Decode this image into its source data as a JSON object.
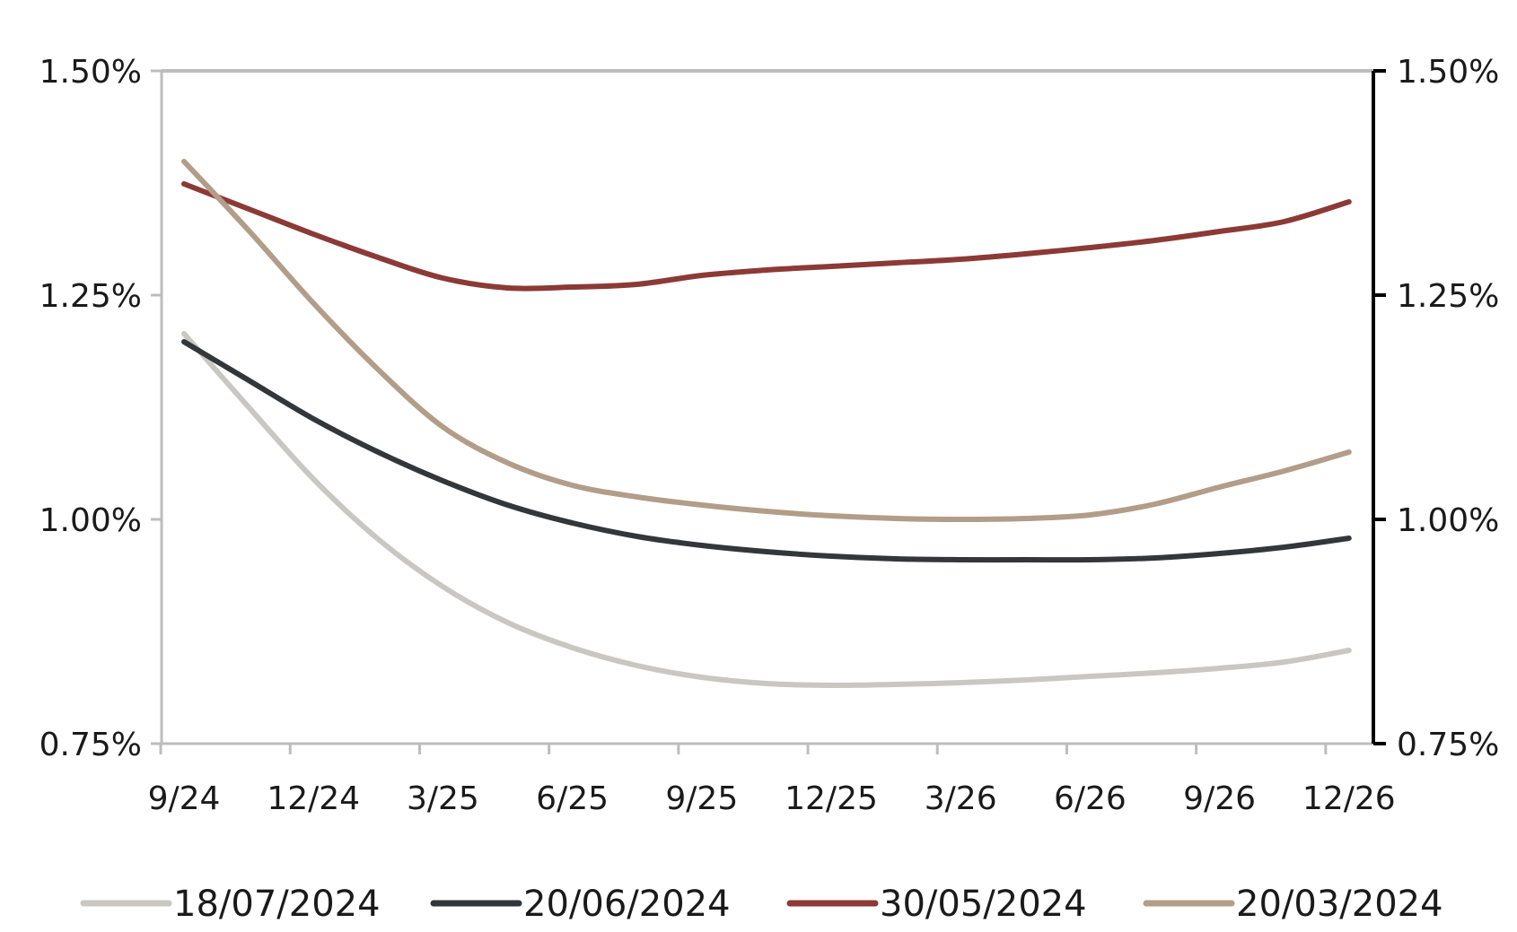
{
  "chart_data": {
    "type": "line",
    "title": "",
    "xlabel": "",
    "ylabel": "",
    "x_tick_labels": [
      "9/24",
      "12/24",
      "3/25",
      "6/25",
      "9/25",
      "12/25",
      "3/26",
      "6/26",
      "9/26",
      "12/26"
    ],
    "y_ticks": [
      0.75,
      1.0,
      1.25,
      1.5
    ],
    "y_tick_labels": [
      "0.75%",
      "1.00%",
      "1.25%",
      "1.50%"
    ],
    "ylim": [
      0.75,
      1.5
    ],
    "y2_tick_labels": [
      "0.75%",
      "1.00%",
      "1.25%",
      "1.50%"
    ],
    "grid": false,
    "legend_position": "bottom",
    "x_months": [
      0,
      3,
      6,
      9,
      12,
      15,
      18,
      21,
      24,
      27
    ],
    "series": [
      {
        "name": "18/07/2024",
        "color": "#c9c7c2",
        "x": [
          0,
          1.5,
          3,
          4.5,
          6,
          7.5,
          9,
          10.5,
          12,
          13.5,
          15,
          16.5,
          18,
          19.5,
          21,
          22.5,
          24,
          25.5,
          27
        ],
        "values": [
          1.207,
          1.125,
          1.045,
          0.978,
          0.925,
          0.885,
          0.857,
          0.837,
          0.824,
          0.817,
          0.815,
          0.816,
          0.818,
          0.821,
          0.825,
          0.829,
          0.834,
          0.841,
          0.854
        ]
      },
      {
        "name": "20/06/2024",
        "color": "#33373a",
        "x": [
          0,
          1.5,
          3,
          4.5,
          6,
          7.5,
          9,
          10.5,
          12,
          13.5,
          15,
          16.5,
          18,
          19.5,
          21,
          22.5,
          24,
          25.5,
          27
        ],
        "values": [
          1.198,
          1.155,
          1.112,
          1.075,
          1.043,
          1.016,
          0.996,
          0.981,
          0.971,
          0.964,
          0.959,
          0.956,
          0.955,
          0.955,
          0.955,
          0.957,
          0.962,
          0.969,
          0.979
        ]
      },
      {
        "name": "30/05/2024",
        "color": "#8b3a36",
        "x": [
          0,
          1.5,
          3,
          4.5,
          6,
          7.5,
          9,
          10.5,
          12,
          13.5,
          15,
          16.5,
          18,
          19.5,
          21,
          22.5,
          24,
          25.5,
          27
        ],
        "values": [
          1.374,
          1.346,
          1.318,
          1.292,
          1.269,
          1.258,
          1.259,
          1.262,
          1.272,
          1.278,
          1.282,
          1.286,
          1.29,
          1.296,
          1.303,
          1.311,
          1.321,
          1.332,
          1.354
        ]
      },
      {
        "name": "20/03/2024",
        "color": "#b29d89",
        "x": [
          0,
          1.5,
          3,
          4.5,
          6,
          7.5,
          9,
          10.5,
          12,
          13.5,
          15,
          16.5,
          18,
          19.5,
          21,
          22.5,
          24,
          25.5,
          27
        ],
        "values": [
          1.399,
          1.322,
          1.241,
          1.167,
          1.103,
          1.063,
          1.038,
          1.025,
          1.016,
          1.009,
          1.004,
          1.001,
          1.0,
          1.001,
          1.005,
          1.017,
          1.036,
          1.054,
          1.075
        ]
      }
    ]
  }
}
